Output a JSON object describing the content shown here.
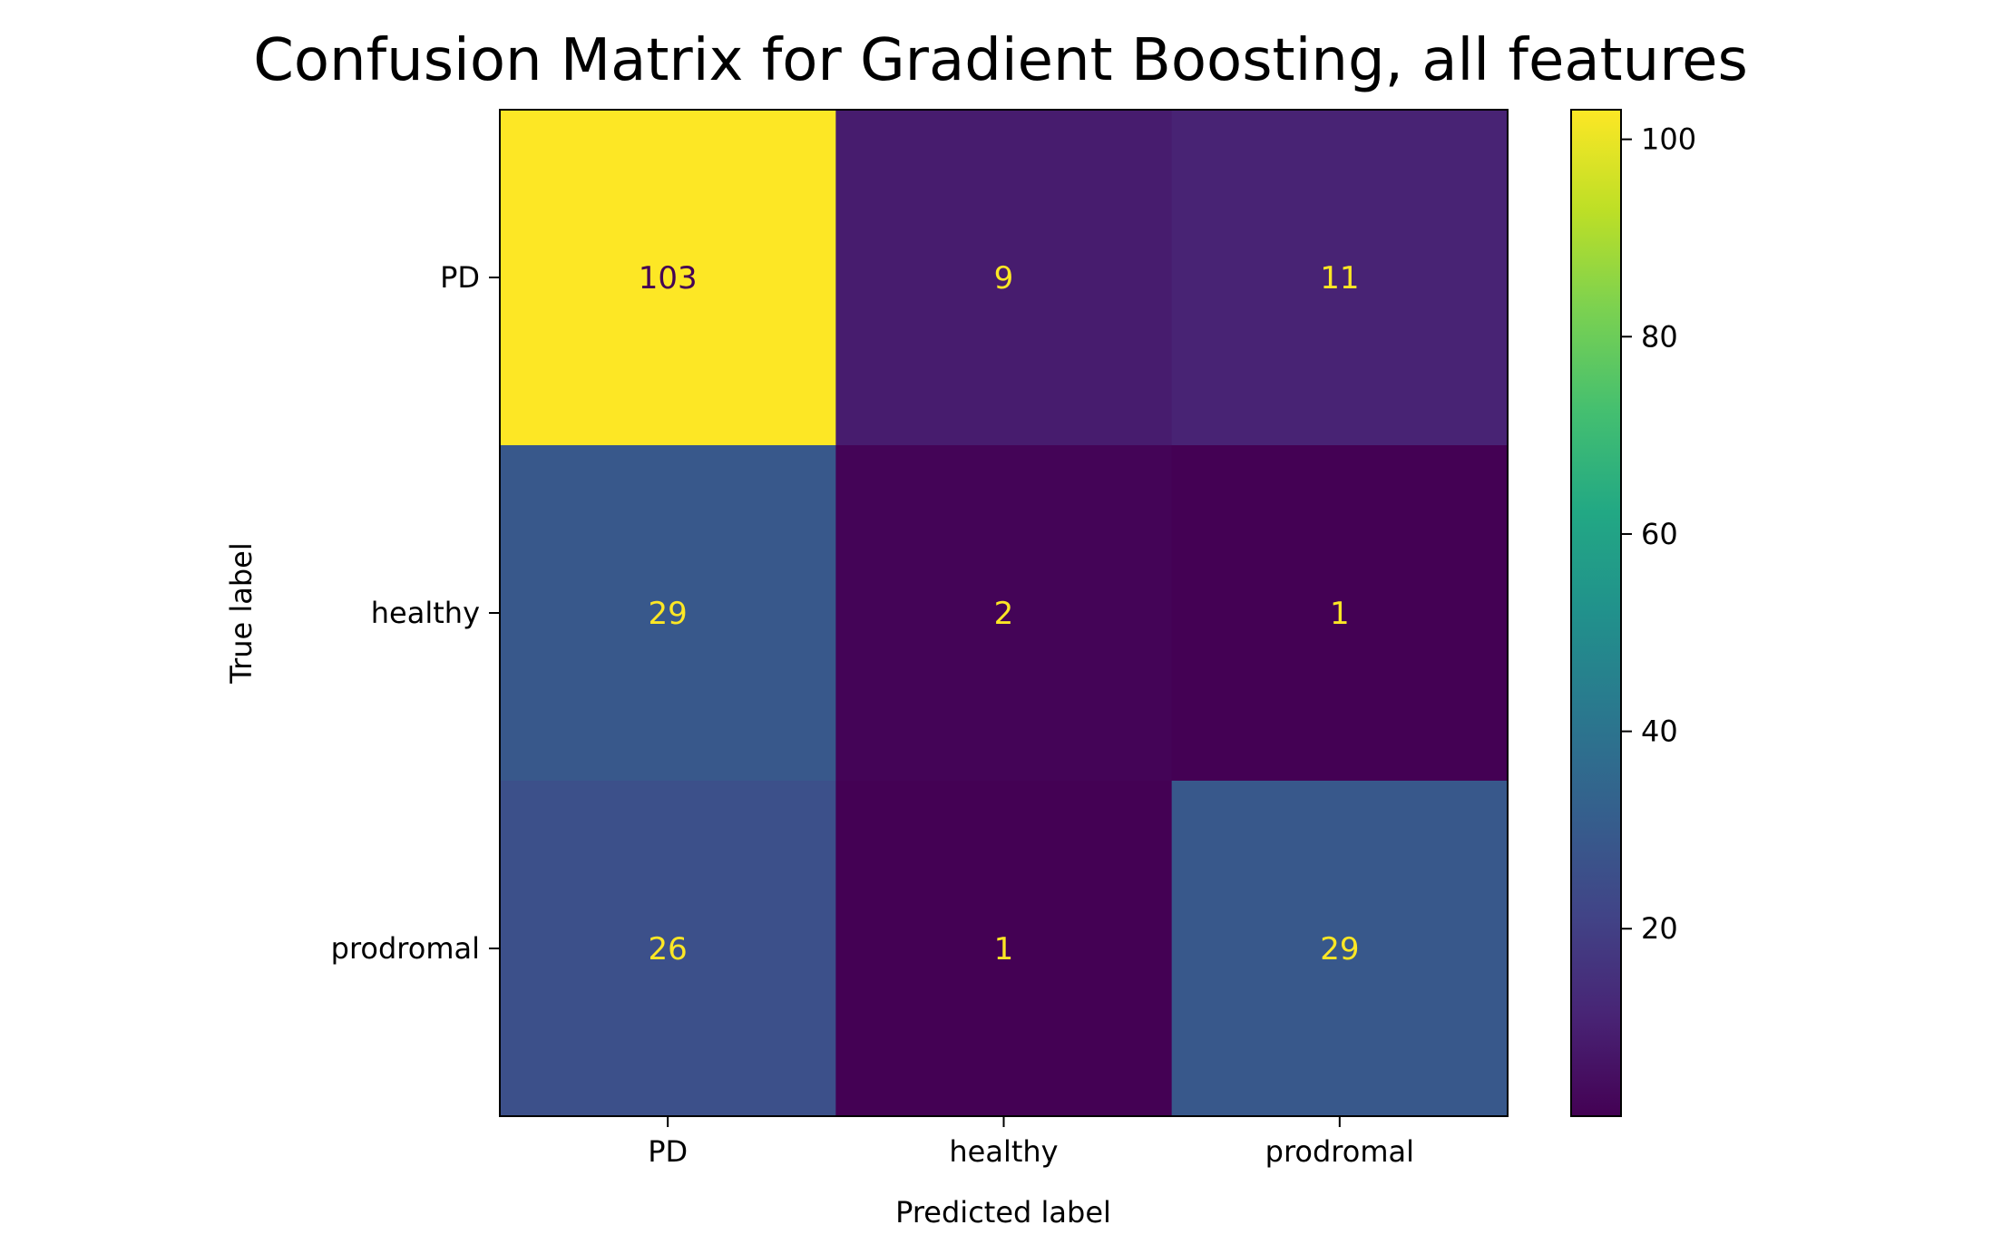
{
  "chart_data": {
    "type": "heatmap",
    "title": "Confusion Matrix for Gradient Boosting, all features",
    "xlabel": "Predicted label",
    "ylabel": "True label",
    "x_categories": [
      "PD",
      "healthy",
      "prodromal"
    ],
    "y_categories": [
      "PD",
      "healthy",
      "prodromal"
    ],
    "matrix": [
      [
        103,
        9,
        11
      ],
      [
        29,
        2,
        1
      ],
      [
        26,
        1,
        29
      ]
    ],
    "colormap": "viridis",
    "colorbar": {
      "range": [
        1,
        103
      ],
      "ticks": [
        20,
        40,
        60,
        80,
        100
      ]
    },
    "grid": false
  }
}
